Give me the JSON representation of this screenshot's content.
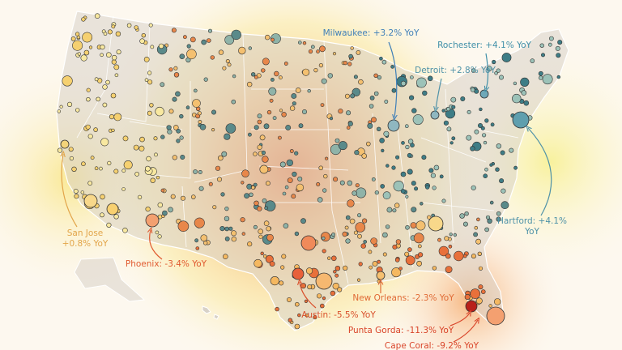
{
  "annotations": [
    {
      "lines": [
        "Milwaukee: +3.2% YoY"
      ],
      "color": "#3f7fb8"
    },
    {
      "lines": [
        "Rochester: +4.1% YoY"
      ],
      "color": "#3f8fa8"
    },
    {
      "lines": [
        "Detroit: +2.8% YoY"
      ],
      "color": "#4f92a8"
    },
    {
      "lines": [
        "San Jose",
        "+0.8% YoY"
      ],
      "color": "#e2a54a"
    },
    {
      "lines": [
        "Phoenix: -3.4% YoY"
      ],
      "color": "#e05a30"
    },
    {
      "lines": [
        "Hartford: +4.1%",
        "YoY"
      ],
      "color": "#4f92a8"
    },
    {
      "lines": [
        "New Orleans: -2.3% YoY"
      ],
      "color": "#e06a35"
    },
    {
      "lines": [
        "Austin: -5.5% YoY"
      ],
      "color": "#d9502c"
    },
    {
      "lines": [
        "Punta Gorda: -11.3% YoY"
      ],
      "color": "#d9452a"
    },
    {
      "lines": [
        "Cape Coral: -9.2% YoY"
      ],
      "color": "#d9452a"
    }
  ]
}
